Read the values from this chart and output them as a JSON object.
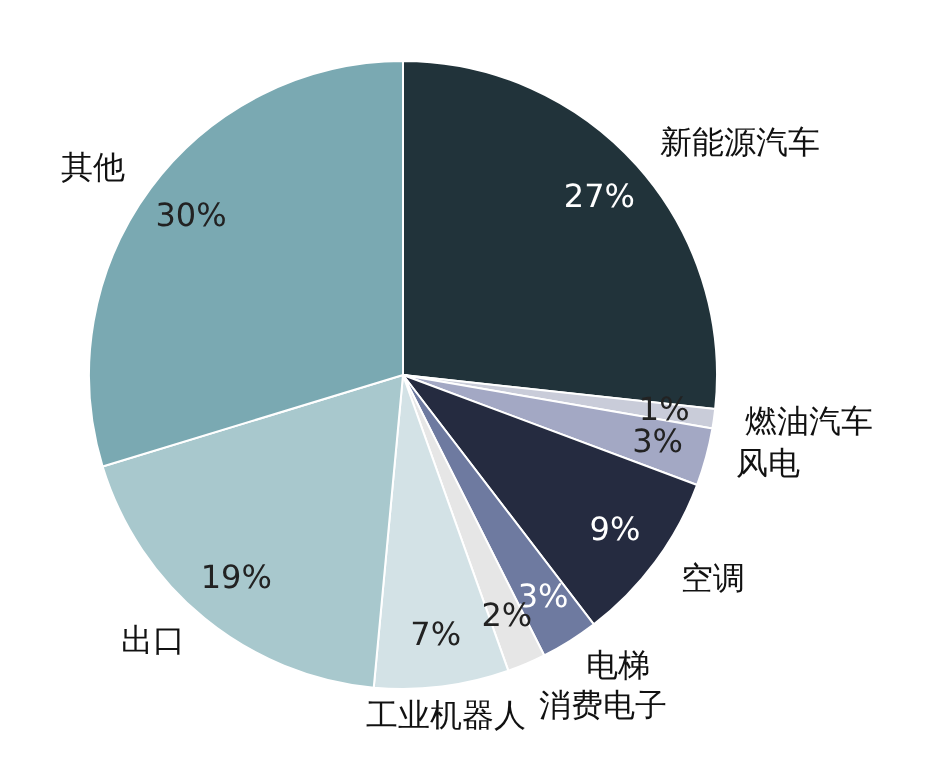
{
  "chart_data": {
    "type": "pie",
    "categories": [
      "新能源汽车",
      "燃油汽车",
      "风电",
      "空调",
      "电梯",
      "消费电子",
      "工业机器人",
      "出口",
      "其他"
    ],
    "values": [
      27,
      1,
      3,
      9,
      3,
      2,
      7,
      19,
      30
    ],
    "colors": [
      "#21333a",
      "#c9ccd9",
      "#a3a8c4",
      "#252b40",
      "#6e7aa0",
      "#e6e6e6",
      "#d3e2e6",
      "#a8c8cd",
      "#7aa9b2"
    ],
    "value_labels": [
      "27%",
      "1%",
      "3%",
      "9%",
      "3%",
      "2%",
      "7%",
      "19%",
      "30%"
    ],
    "legend": false
  }
}
